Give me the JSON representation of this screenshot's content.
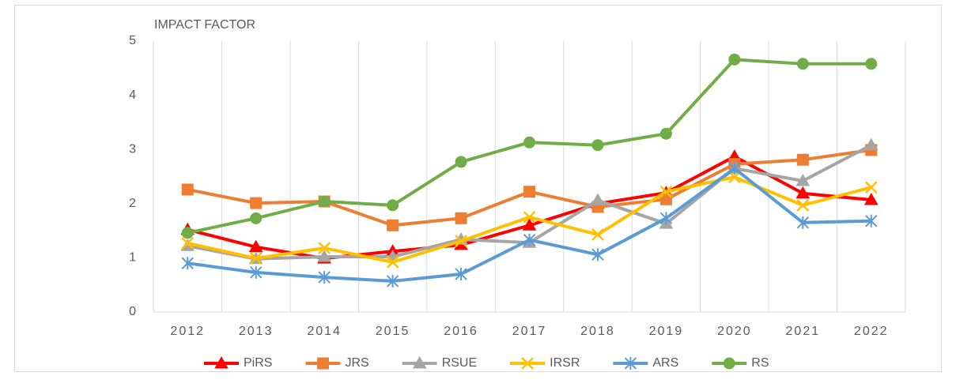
{
  "chart_data": {
    "type": "line",
    "y_label": "IMPACT FACTOR",
    "categories": [
      "2012",
      "2013",
      "2014",
      "2015",
      "2016",
      "2017",
      "2018",
      "2019",
      "2020",
      "2021",
      "2022"
    ],
    "series": [
      {
        "name": "PiRS",
        "color": "#ff0000",
        "marker": "triangle",
        "values": [
          1.52,
          1.2,
          0.99,
          1.12,
          1.24,
          1.6,
          2.0,
          2.2,
          2.87,
          2.19,
          2.07
        ]
      },
      {
        "name": "JRS",
        "color": "#ed7d31",
        "marker": "square",
        "values": [
          2.26,
          2.01,
          2.04,
          1.6,
          1.73,
          2.22,
          1.94,
          2.08,
          2.73,
          2.81,
          2.99
        ]
      },
      {
        "name": "RSUE",
        "color": "#a5a5a5",
        "marker": "triangle",
        "values": [
          1.22,
          0.98,
          1.02,
          1.02,
          1.34,
          1.28,
          2.06,
          1.63,
          2.65,
          2.42,
          3.08
        ]
      },
      {
        "name": "IRSR",
        "color": "#ffc000",
        "marker": "x",
        "values": [
          1.27,
          0.99,
          1.18,
          0.92,
          1.31,
          1.75,
          1.43,
          2.22,
          2.49,
          1.97,
          2.3
        ]
      },
      {
        "name": "ARS",
        "color": "#5b9bd5",
        "marker": "star",
        "values": [
          0.9,
          0.73,
          0.64,
          0.57,
          0.7,
          1.33,
          1.06,
          1.73,
          2.65,
          1.65,
          1.68
        ]
      },
      {
        "name": "RS",
        "color": "#70ad47",
        "marker": "circle",
        "values": [
          1.46,
          1.73,
          2.04,
          1.97,
          2.77,
          3.13,
          3.08,
          3.29,
          4.66,
          4.58,
          4.58
        ]
      }
    ],
    "ylim": [
      0,
      5
    ],
    "yticks": [
      0,
      1,
      2,
      3,
      4,
      5
    ],
    "legend": "bottom"
  }
}
